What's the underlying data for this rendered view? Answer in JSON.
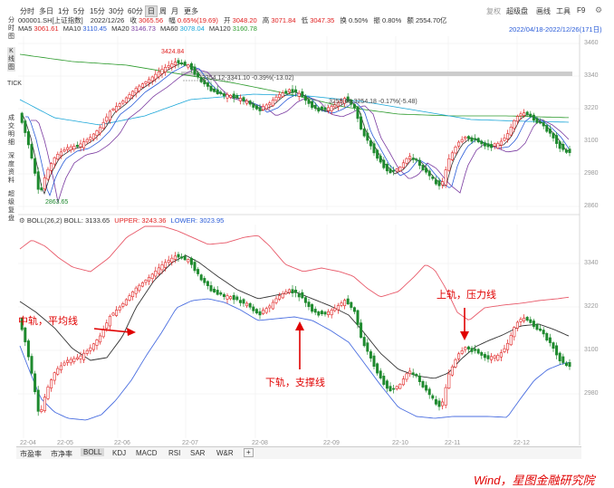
{
  "toolbar": {
    "periods": [
      "分时",
      "多日",
      "1分",
      "5分",
      "15分",
      "30分",
      "60分",
      "日",
      "周",
      "月",
      "更多"
    ],
    "active_period": "日",
    "right_buttons": [
      "复权",
      "超级盘",
      "画线",
      "工具",
      "F9"
    ]
  },
  "info": {
    "code": "000001.SH[上证指数]",
    "date": "2022/12/26",
    "close_label": "收",
    "close": "3065.56",
    "change_label": "幅",
    "change": "0.65%(19.69)",
    "open_label": "开",
    "open": "3048.20",
    "high_label": "高",
    "high": "3071.84",
    "low_label": "低",
    "low": "3047.35",
    "turnover_label": "换",
    "turnover": "0.50%",
    "amplitude_label": "振",
    "amplitude": "0.80%",
    "amount_label": "额",
    "amount": "2554.70亿"
  },
  "ma": {
    "ma5_label": "MA5",
    "ma5": "3061.61",
    "ma10_label": "MA10",
    "ma10": "3110.45",
    "ma20_label": "MA20",
    "ma20": "3146.73",
    "ma60_label": "MA60",
    "ma60": "3078.04",
    "ma120_label": "MA120",
    "ma120": "3160.78",
    "range": "2022/04/18-2022/12/26(171日)"
  },
  "sidebar": {
    "fenshi": "分时图",
    "kline": "K线图",
    "tick": "TICK",
    "deal": "成交明细",
    "depth": "深度资料",
    "super": "超级复盘"
  },
  "upper_chart": {
    "high_marker": "3424.84",
    "low_marker": "2863.65",
    "measure1": "3354.12-3341.10 -0.39%(-13.02)",
    "measure2": "3259.66-3254.18 -0.17%(-5.48)",
    "price_ticks": [
      "3460",
      "3340",
      "3220",
      "3100",
      "2980",
      "2860"
    ]
  },
  "boll": {
    "header": "BOLL(26,2)",
    "boll_label": "BOLL:",
    "boll": "3133.65",
    "upper_label": "UPPER:",
    "upper": "3243.36",
    "lower_label": "LOWER:",
    "lower": "3023.95",
    "price_ticks": [
      "3340",
      "3220",
      "3100",
      "2980"
    ]
  },
  "dates": [
    "22-04",
    "22-05",
    "22-06",
    "22-07",
    "22-08",
    "22-09",
    "22-10",
    "22-11",
    "22-12"
  ],
  "tabs": [
    "市盈率",
    "市净率",
    "BOLL",
    "KDJ",
    "MACD",
    "RSI",
    "SAR",
    "W&R"
  ],
  "active_tab": "BOLL",
  "annotations": {
    "middle": "中轨，平均线",
    "upper": "上轨，压力线",
    "lower": "下轨，支撑线"
  },
  "watermark": "Wind，星图金融研究院",
  "colors": {
    "up": "#e02020",
    "down": "#1e8a2e",
    "upper_band": "#e85a6a",
    "mid_band": "#333333",
    "lower_band": "#4a6ee0",
    "annotation": "#e00000"
  }
}
